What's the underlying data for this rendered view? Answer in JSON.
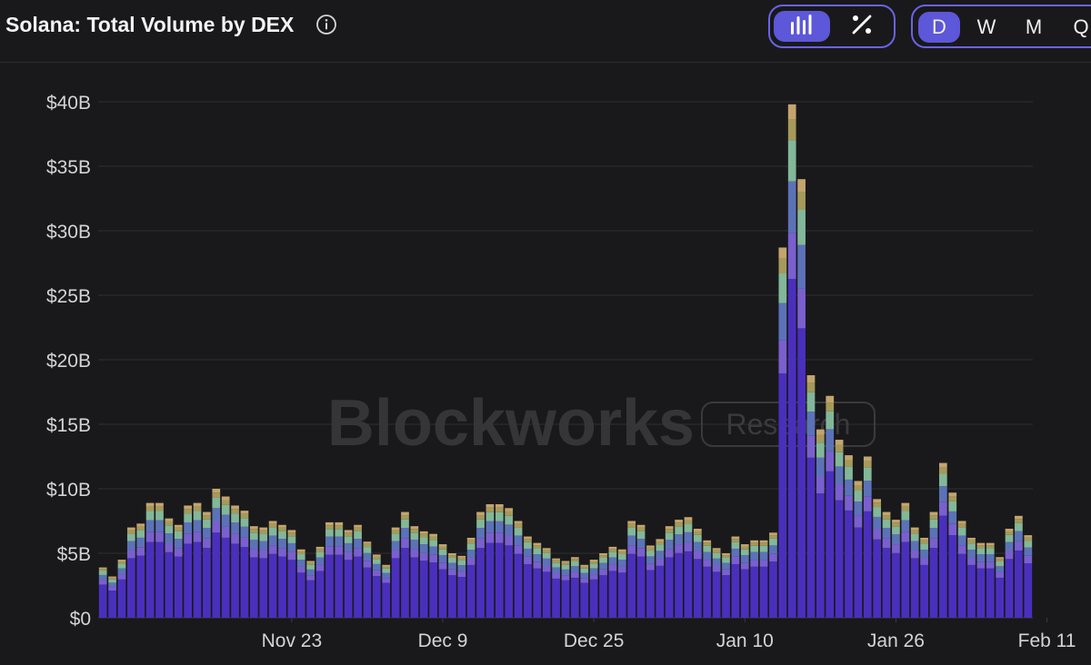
{
  "header": {
    "title": "Solana: Total Volume by DEX",
    "chart_type_toggle": [
      {
        "icon": "bar-chart-icon",
        "active": true
      },
      {
        "icon": "percent-icon",
        "active": false
      }
    ],
    "timeframes": [
      {
        "label": "D",
        "active": true
      },
      {
        "label": "W",
        "active": false
      },
      {
        "label": "M",
        "active": false
      },
      {
        "label": "Q",
        "active": false
      }
    ]
  },
  "watermark": {
    "brand": "Blockworks",
    "tag": "Research"
  },
  "colors": {
    "accent": "#5d57d9",
    "background": "#19191b",
    "series": [
      "#4a2fbd",
      "#7a5fcf",
      "#5c72b8",
      "#82b799",
      "#a59a5a",
      "#c4a46e"
    ]
  },
  "chart_data": {
    "type": "bar",
    "stacked": true,
    "title": "Solana: Total Volume by DEX",
    "ylim": [
      0,
      40
    ],
    "yticks": [
      "$0",
      "$5B",
      "$10B",
      "$15B",
      "$20B",
      "$25B",
      "$30B",
      "$35B",
      "$40B"
    ],
    "x_tick_labels": [
      {
        "label": "Nov 23",
        "index": 20
      },
      {
        "label": "Dec 9",
        "index": 36
      },
      {
        "label": "Dec 25",
        "index": 52
      },
      {
        "label": "Jan 10",
        "index": 68
      },
      {
        "label": "Jan 26",
        "index": 84
      },
      {
        "label": "Feb 11",
        "index": 100
      }
    ],
    "series_shares": [
      0.66,
      0.09,
      0.1,
      0.08,
      0.04,
      0.03
    ],
    "totals": [
      3.9,
      3.2,
      4.5,
      7.0,
      7.3,
      8.9,
      8.9,
      7.7,
      7.2,
      8.7,
      8.9,
      8.2,
      10.0,
      9.4,
      8.7,
      8.3,
      7.1,
      7.0,
      7.5,
      7.2,
      6.8,
      5.3,
      4.4,
      5.5,
      7.4,
      7.4,
      6.8,
      7.2,
      5.9,
      4.9,
      4.1,
      7.0,
      8.2,
      7.1,
      6.7,
      6.5,
      5.7,
      5.0,
      4.8,
      6.2,
      8.2,
      8.8,
      8.8,
      8.5,
      7.5,
      6.3,
      5.8,
      5.4,
      4.6,
      4.4,
      4.7,
      4.1,
      4.5,
      5.0,
      5.5,
      5.3,
      7.5,
      7.2,
      5.6,
      6.1,
      7.1,
      7.6,
      7.8,
      6.9,
      6.0,
      5.4,
      5.0,
      6.3,
      5.7,
      6.0,
      6.0,
      6.6,
      28.7,
      39.8,
      34.0,
      18.8,
      14.6,
      17.2,
      13.8,
      12.6,
      10.6,
      12.5,
      9.2,
      8.2,
      7.6,
      8.9,
      7.0,
      6.2,
      8.2,
      12.0,
      9.7,
      7.5,
      6.2,
      5.8,
      5.8,
      4.7,
      6.9,
      7.9,
      6.4
    ]
  }
}
